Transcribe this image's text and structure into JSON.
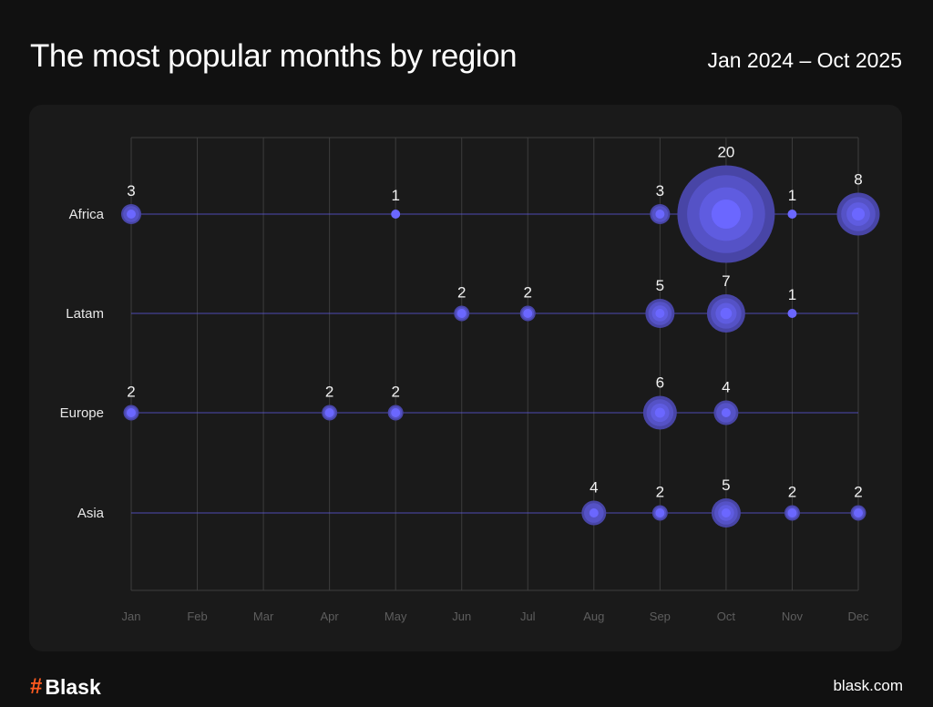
{
  "header": {
    "title": "The most popular months by region",
    "date_range": "Jan 2024 – Oct 2025"
  },
  "footer": {
    "brand": "Blask",
    "site": "blask.com"
  },
  "colors": {
    "bubble_outer": "#4845a6",
    "bubble_mid": "#5552c6",
    "bubble_inner": "#5f5ce0",
    "bubble_core": "#6b67ff",
    "line": "#5b58d8"
  },
  "chart_data": {
    "type": "scatter",
    "title": "The most popular months by region",
    "categories": [
      "Jan",
      "Feb",
      "Mar",
      "Apr",
      "May",
      "Jun",
      "Jul",
      "Aug",
      "Sep",
      "Oct",
      "Nov",
      "Dec"
    ],
    "rows": [
      "Africa",
      "Latam",
      "Europe",
      "Asia"
    ],
    "series": [
      {
        "name": "Africa",
        "points": [
          {
            "month": "Jan",
            "value": 3
          },
          {
            "month": "May",
            "value": 1
          },
          {
            "month": "Sep",
            "value": 3
          },
          {
            "month": "Oct",
            "value": 20
          },
          {
            "month": "Nov",
            "value": 1
          },
          {
            "month": "Dec",
            "value": 8
          }
        ]
      },
      {
        "name": "Latam",
        "points": [
          {
            "month": "Jun",
            "value": 2
          },
          {
            "month": "Jul",
            "value": 2
          },
          {
            "month": "Sep",
            "value": 5
          },
          {
            "month": "Oct",
            "value": 7
          },
          {
            "month": "Nov",
            "value": 1
          }
        ]
      },
      {
        "name": "Europe",
        "points": [
          {
            "month": "Jan",
            "value": 2
          },
          {
            "month": "Apr",
            "value": 2
          },
          {
            "month": "May",
            "value": 2
          },
          {
            "month": "Sep",
            "value": 6
          },
          {
            "month": "Oct",
            "value": 4
          }
        ]
      },
      {
        "name": "Asia",
        "points": [
          {
            "month": "Aug",
            "value": 4
          },
          {
            "month": "Sep",
            "value": 2
          },
          {
            "month": "Oct",
            "value": 5
          },
          {
            "month": "Nov",
            "value": 2
          },
          {
            "month": "Dec",
            "value": 2
          }
        ]
      }
    ],
    "grid": true
  }
}
